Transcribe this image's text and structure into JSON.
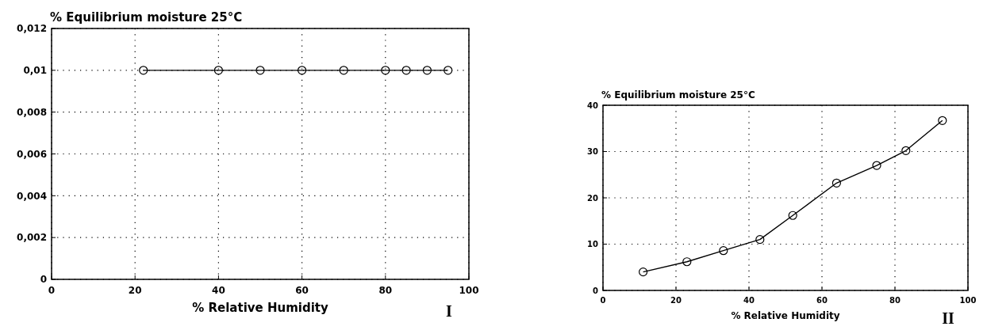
{
  "chart_data": [
    {
      "type": "line",
      "ylabel": "% Equilibrium moisture 25°C",
      "xlabel": "% Relative Humidity",
      "annotations": [
        "I"
      ],
      "x": [
        22,
        40,
        50,
        60,
        70,
        80,
        85,
        90,
        95
      ],
      "series": [
        {
          "color": "#000000",
          "values": [
            0.01,
            0.01,
            0.01,
            0.01,
            0.01,
            0.01,
            0.01,
            0.01,
            0.01
          ]
        }
      ],
      "xlim": [
        0,
        100
      ],
      "xticks": [
        0,
        20,
        40,
        60,
        80,
        100
      ],
      "ylim": [
        0,
        0.012
      ],
      "yticks": [
        0,
        {
          "value": 0.002,
          "label": "0,002"
        },
        {
          "value": 0.004,
          "label": "0,004"
        },
        {
          "value": 0.006,
          "label": "0,006"
        },
        {
          "value": 0.008,
          "label": "0,008"
        },
        {
          "value": 0.01,
          "label": "0,01"
        },
        {
          "value": 0.012,
          "label": "0,012"
        }
      ],
      "grid": true,
      "marker": "circle",
      "line_style": "solid"
    },
    {
      "type": "line",
      "ylabel": "% Equilibrium moisture 25°C",
      "xlabel": "% Relative Humidity",
      "annotations": [
        "II"
      ],
      "x": [
        11,
        23,
        33,
        43,
        52,
        64,
        75,
        83,
        93
      ],
      "series": [
        {
          "color": "#000000",
          "values": [
            4,
            6.2,
            8.6,
            11,
            16.2,
            23.2,
            27,
            30.2,
            36.7
          ]
        }
      ],
      "xlim": [
        0,
        100
      ],
      "xticks": [
        0,
        20,
        40,
        60,
        80,
        100
      ],
      "ylim": [
        0,
        40
      ],
      "yticks": [
        0,
        10,
        20,
        30,
        40
      ],
      "grid": true,
      "marker": "circle",
      "line_style": "solid"
    }
  ]
}
